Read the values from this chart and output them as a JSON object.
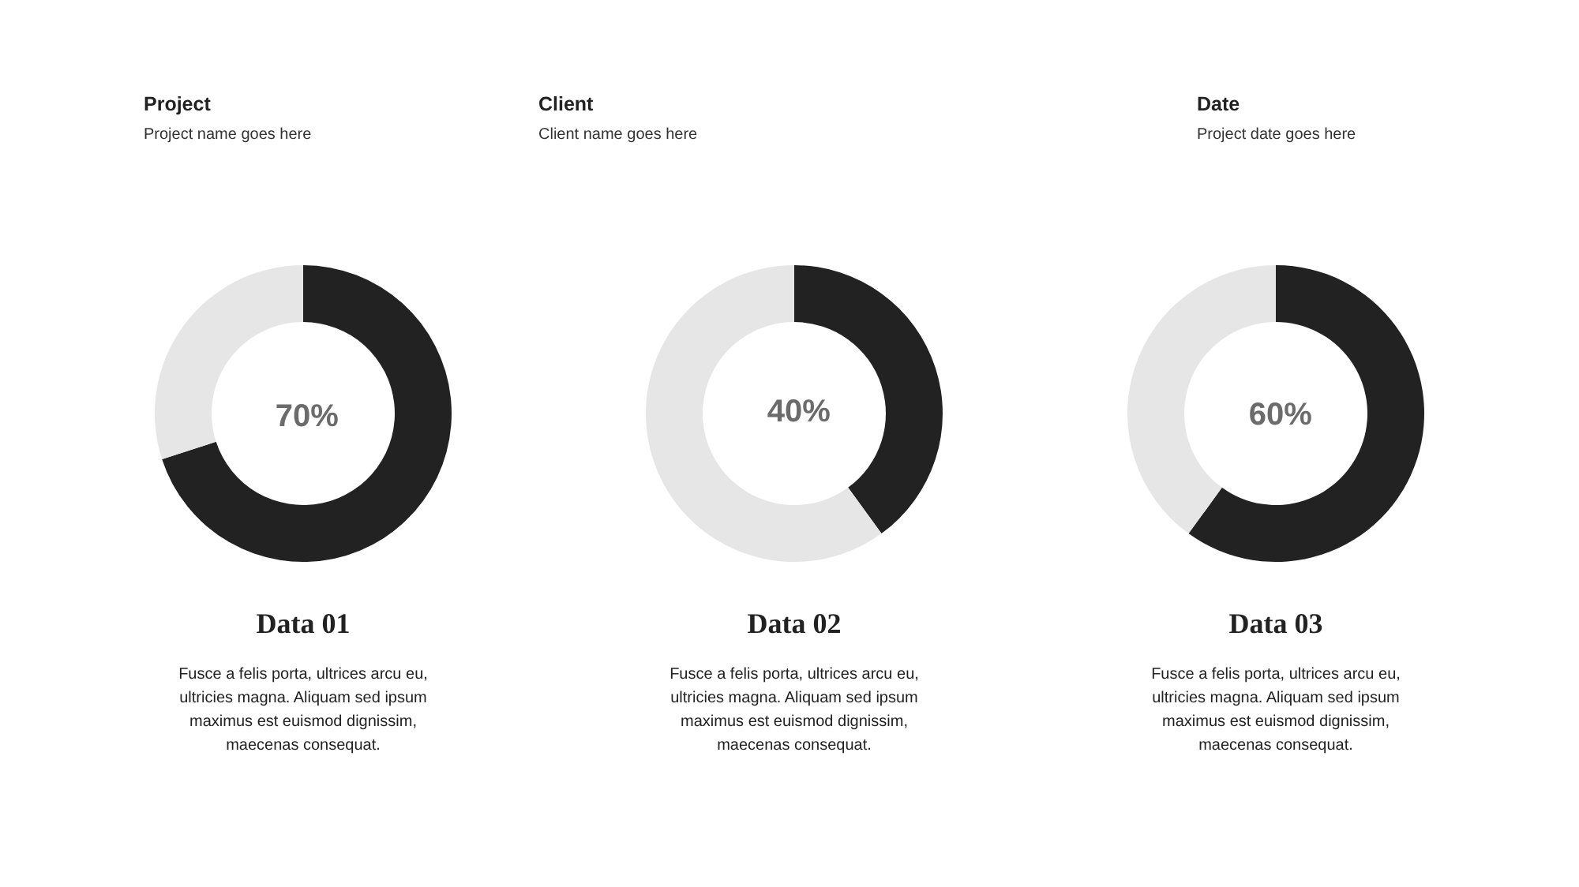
{
  "chart_data": [
    {
      "type": "other",
      "title": "Project",
      "subtitle": "Project name goes here"
    },
    {
      "type": "other",
      "title": "Client",
      "subtitle": "Client name goes here"
    },
    {
      "type": "other",
      "title": "Date",
      "subtitle": "Project date goes here"
    },
    {
      "type": "donut",
      "title": "Data 01",
      "categories": [
        null,
        null
      ],
      "values": [
        70,
        30
      ],
      "colors": [
        "#222222",
        "#e6e6e6"
      ],
      "value_labels": [
        "70%",
        null
      ],
      "annotations": [
        "Fusce a felis porta, ultrices arcu eu, ultricies magna. Aliquam sed ipsum maximus est euismod dignissim, maecenas consequat."
      ]
    },
    {
      "type": "donut",
      "title": "Data 02",
      "categories": [
        null,
        null
      ],
      "values": [
        40,
        60
      ],
      "colors": [
        "#222222",
        "#e6e6e6"
      ],
      "value_labels": [
        "40%",
        null
      ],
      "annotations": [
        "Fusce a felis porta, ultrices arcu eu, ultricies magna. Aliquam sed ipsum maximus est euismod dignissim, maecenas consequat."
      ]
    },
    {
      "type": "donut",
      "title": "Data 03",
      "categories": [
        null,
        null
      ],
      "values": [
        60,
        40
      ],
      "colors": [
        "#222222",
        "#e6e6e6"
      ],
      "value_labels": [
        "60%",
        null
      ],
      "annotations": [
        "Fusce a felis porta, ultrices arcu eu, ultricies magna. Aliquam sed ipsum maximus est euismod dignissim, maecenas consequat."
      ]
    }
  ]
}
